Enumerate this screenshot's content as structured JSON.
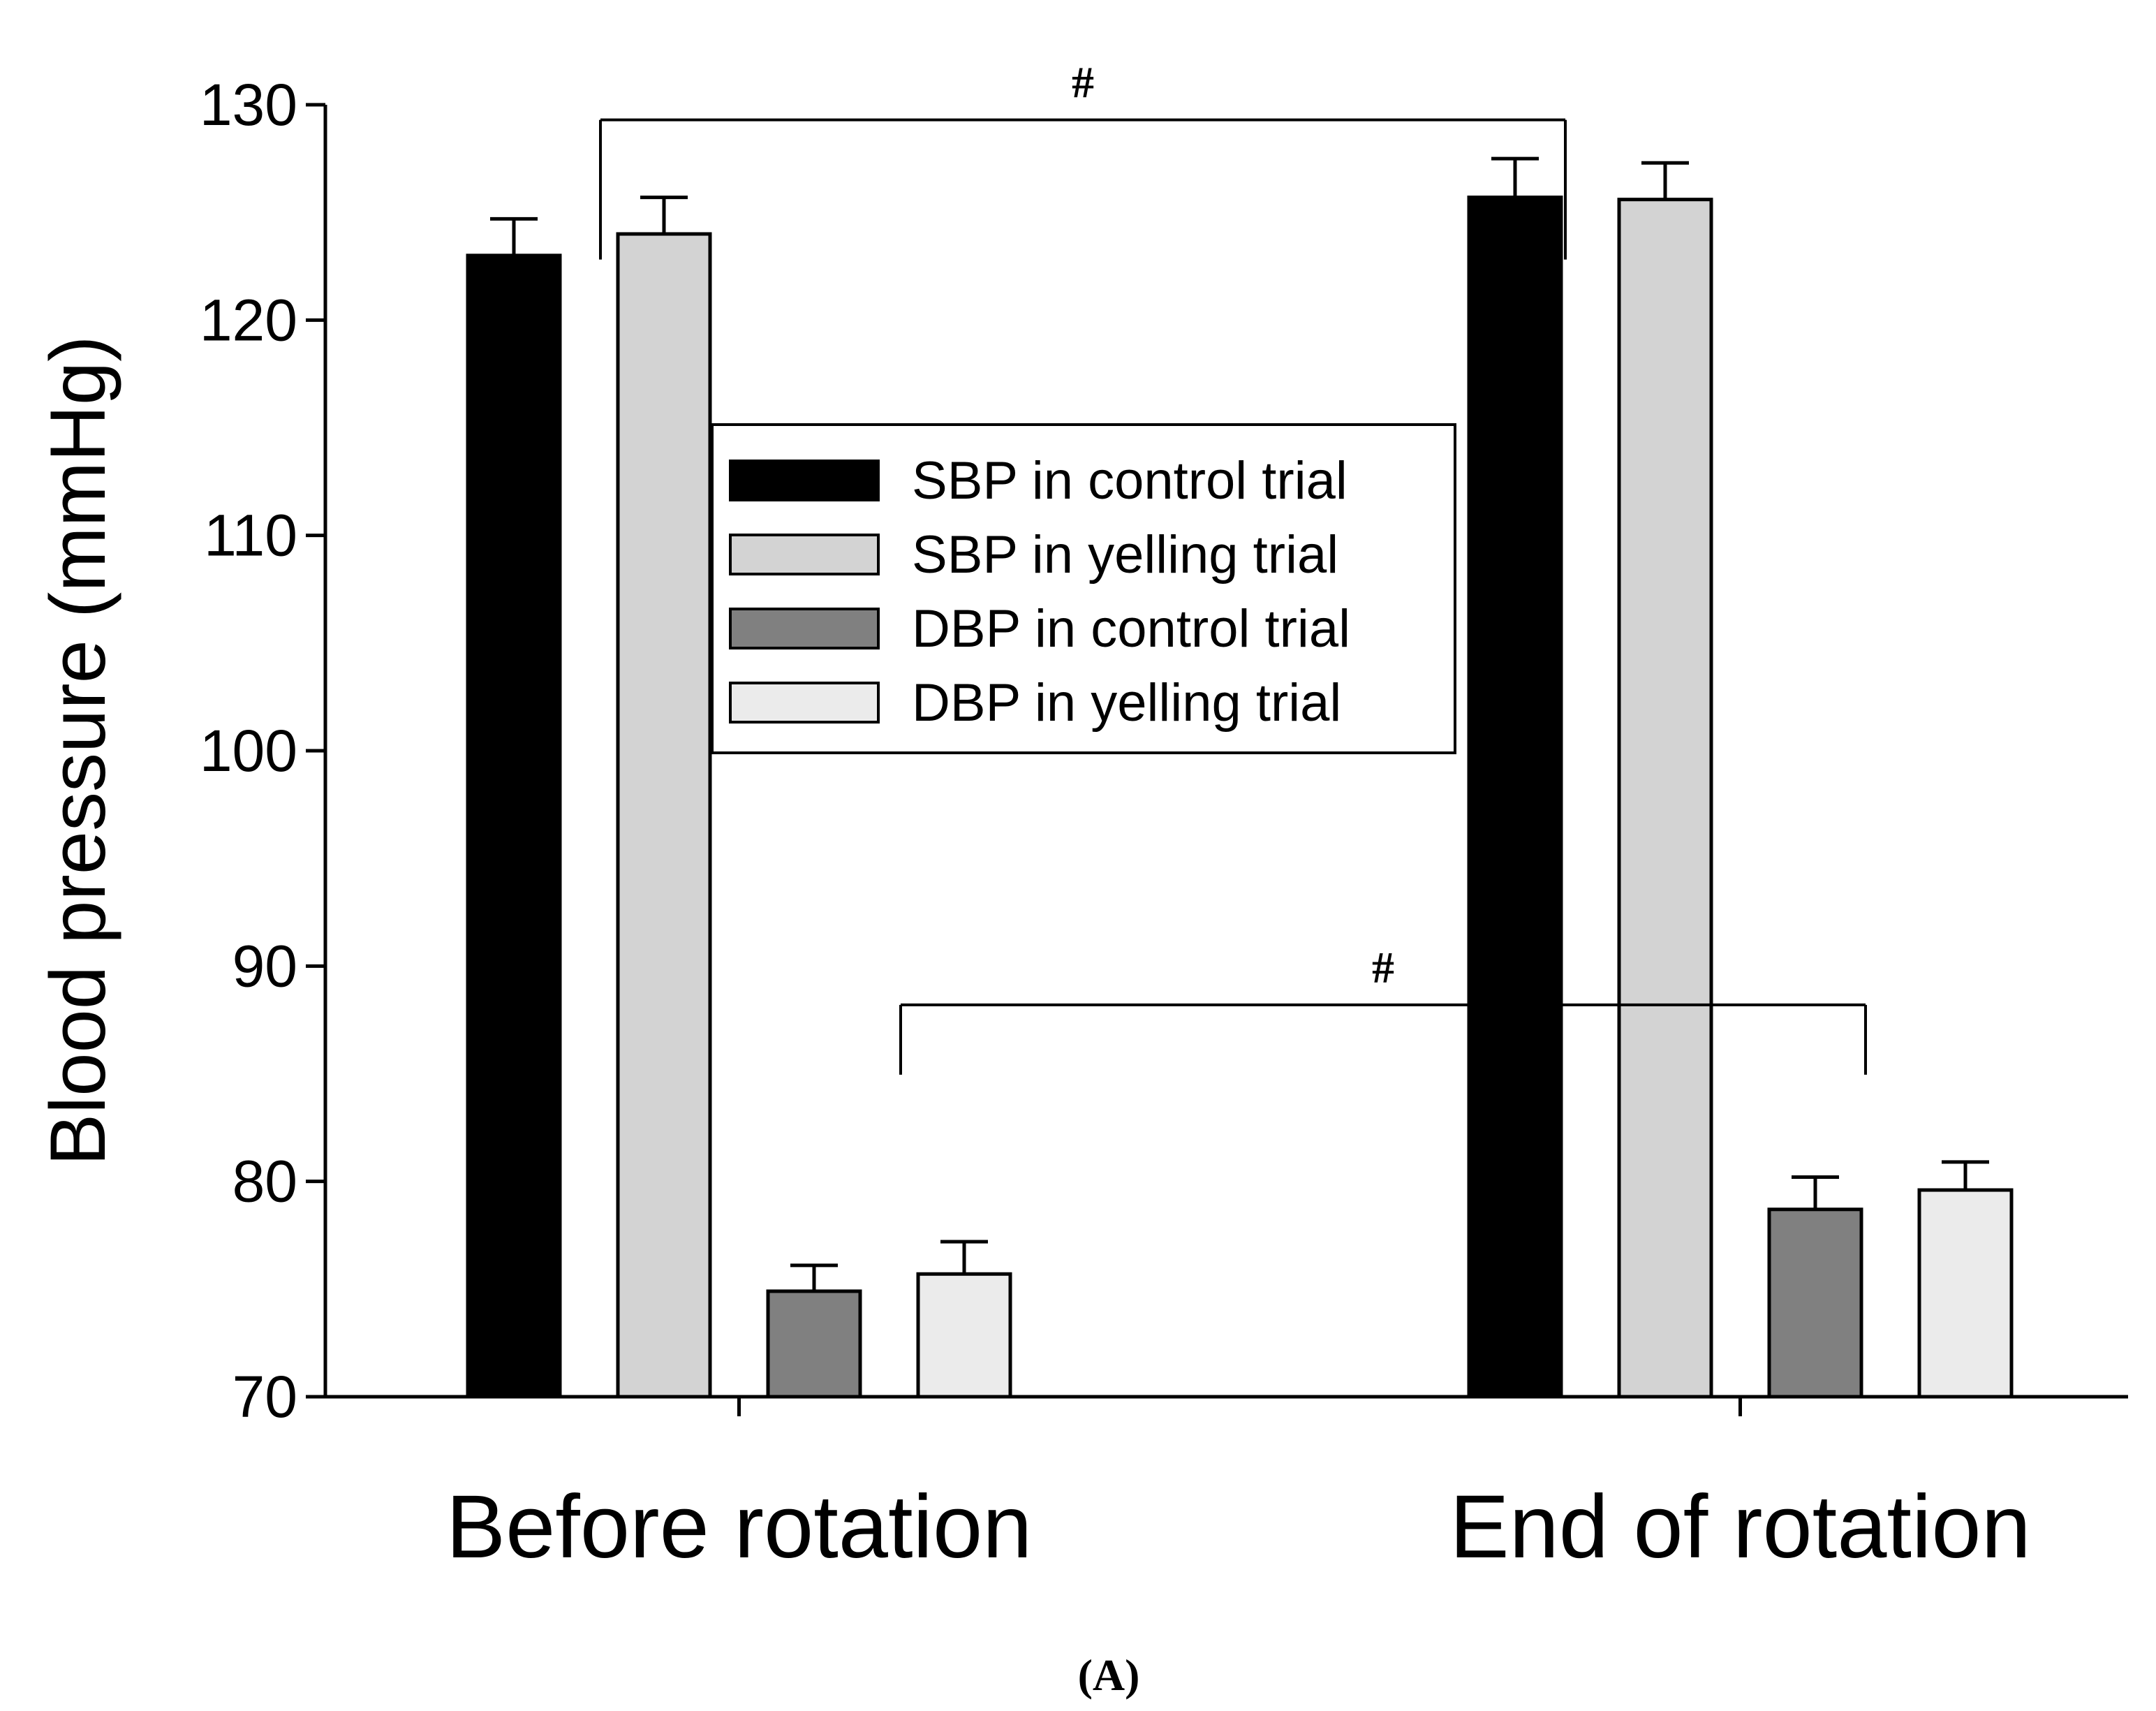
{
  "chart_data": {
    "type": "bar",
    "title": "",
    "xlabel": "",
    "ylabel": "Blood pressure (mmHg)",
    "ylim": [
      70,
      130
    ],
    "yticks": [
      70,
      80,
      90,
      100,
      110,
      120,
      130
    ],
    "grid": false,
    "legend_position": "center",
    "categories": [
      "Before rotation",
      "End of rotation"
    ],
    "series": [
      {
        "name": "SBP in control trial",
        "color": "#000000",
        "values": [
          123.0,
          125.7
        ],
        "errors": [
          1.7,
          1.8
        ]
      },
      {
        "name": "SBP in yelling trial",
        "color": "#d3d3d3",
        "values": [
          124.0,
          125.6
        ],
        "errors": [
          1.7,
          1.7
        ]
      },
      {
        "name": "DBP in control trial",
        "color": "#808080",
        "values": [
          74.9,
          78.7
        ],
        "errors": [
          1.2,
          1.5
        ]
      },
      {
        "name": "DBP in yelling trial",
        "color": "#ebebeb",
        "values": [
          75.7,
          79.6
        ],
        "errors": [
          1.5,
          1.3
        ]
      }
    ],
    "annotations": [
      {
        "label": "#",
        "from_series": 0,
        "from_category": 0,
        "to_series": 0,
        "to_category": 1,
        "level": 129.3
      },
      {
        "label": "#",
        "from_series": 2,
        "from_category": 0,
        "to_series": 2,
        "to_category": 1,
        "level": 88.2
      }
    ],
    "panel_label": "(A)"
  }
}
